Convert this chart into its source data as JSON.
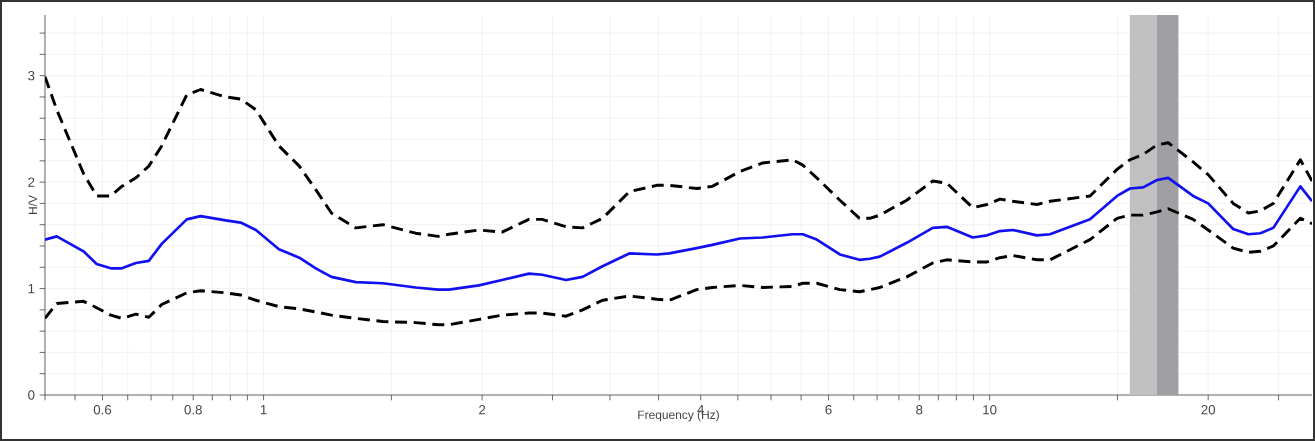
{
  "chart_data": {
    "type": "line",
    "xlabel": "Frequency (Hz)",
    "ylabel": "H/V",
    "log": "x",
    "grid": true,
    "xlim": [
      0.5,
      27.8
    ],
    "ylim": [
      0,
      3.57
    ],
    "xticks": [
      {
        "value": 0.5,
        "label": null
      },
      {
        "value": 0.55,
        "label": null
      },
      0.6,
      {
        "value": 0.65,
        "label": null
      },
      {
        "value": 0.7,
        "label": null
      },
      {
        "value": 0.75,
        "label": null
      },
      0.8,
      {
        "value": 0.85,
        "label": null
      },
      {
        "value": 0.9,
        "label": null
      },
      {
        "value": 0.95,
        "label": null
      },
      1,
      {
        "value": 1.5,
        "label": null
      },
      2,
      {
        "value": 2.5,
        "label": null
      },
      {
        "value": 3,
        "label": null
      },
      {
        "value": 3.5,
        "label": null
      },
      4,
      {
        "value": 4.5,
        "label": null
      },
      {
        "value": 5,
        "label": null
      },
      {
        "value": 5.5,
        "label": null
      },
      6,
      {
        "value": 6.5,
        "label": null
      },
      {
        "value": 7,
        "label": null
      },
      {
        "value": 7.5,
        "label": null
      },
      8,
      {
        "value": 8.5,
        "label": null
      },
      {
        "value": 9,
        "label": null
      },
      {
        "value": 9.5,
        "label": null
      },
      10,
      {
        "value": 15,
        "label": null
      },
      20,
      {
        "value": 25,
        "label": null
      }
    ],
    "yticks": [
      0,
      {
        "value": 0.2,
        "label": null
      },
      {
        "value": 0.4,
        "label": null
      },
      {
        "value": 0.6,
        "label": null
      },
      {
        "value": 0.8,
        "label": null
      },
      1,
      {
        "value": 1.2,
        "label": null
      },
      {
        "value": 1.4,
        "label": null
      },
      {
        "value": 1.6,
        "label": null
      },
      {
        "value": 1.8,
        "label": null
      },
      2,
      {
        "value": 2.2,
        "label": null
      },
      {
        "value": 2.4,
        "label": null
      },
      {
        "value": 2.6,
        "label": null
      },
      {
        "value": 2.8,
        "label": null
      },
      3,
      {
        "value": 3.2,
        "label": null
      },
      {
        "value": 3.4,
        "label": null
      }
    ],
    "bands": [
      {
        "axis": "x",
        "from": 15.6,
        "to": 17.0,
        "color": "#c0c0c0"
      },
      {
        "axis": "x",
        "from": 17.0,
        "to": 18.2,
        "color": "#a0a0a4"
      }
    ],
    "x": [
      0.5,
      0.519,
      0.565,
      0.589,
      0.616,
      0.638,
      0.667,
      0.695,
      0.724,
      0.784,
      0.819,
      0.887,
      0.93,
      0.976,
      1.05,
      1.12,
      1.18,
      1.24,
      1.34,
      1.46,
      1.62,
      1.74,
      1.8,
      1.98,
      2.13,
      2.32,
      2.42,
      2.61,
      2.75,
      2.93,
      3.19,
      3.48,
      3.62,
      3.95,
      4.15,
      4.53,
      4.87,
      5.35,
      5.53,
      5.78,
      6.22,
      6.62,
      6.84,
      7.06,
      7.69,
      8.35,
      8.73,
      9.48,
      9.92,
      10.33,
      10.77,
      11.62,
      12.11,
      13.75,
      14.98,
      15.61,
      16.27,
      17.01,
      17.62,
      19.07,
      20.0,
      21.65,
      22.72,
      23.6,
      24.59,
      26.79,
      27.8
    ],
    "series": [
      {
        "color": "#000000",
        "line_style": "dashed",
        "values": [
          2.99,
          2.68,
          2.08,
          1.87,
          1.87,
          1.96,
          2.04,
          2.15,
          2.34,
          2.82,
          2.87,
          2.8,
          2.78,
          2.68,
          2.34,
          2.15,
          1.93,
          1.71,
          1.57,
          1.6,
          1.52,
          1.49,
          1.51,
          1.55,
          1.53,
          1.65,
          1.65,
          1.58,
          1.57,
          1.66,
          1.91,
          1.97,
          1.97,
          1.94,
          1.96,
          2.1,
          2.18,
          2.21,
          2.16,
          2.04,
          1.83,
          1.66,
          1.66,
          1.69,
          1.83,
          2.01,
          1.99,
          1.76,
          1.79,
          1.84,
          1.82,
          1.79,
          1.82,
          1.87,
          2.12,
          2.21,
          2.26,
          2.35,
          2.37,
          2.19,
          2.07,
          1.8,
          1.71,
          1.73,
          1.8,
          2.21,
          2.01
        ]
      },
      {
        "color": "#000000",
        "line_style": "dashed",
        "values": [
          0.72,
          0.86,
          0.88,
          0.82,
          0.75,
          0.72,
          0.76,
          0.73,
          0.85,
          0.96,
          0.98,
          0.96,
          0.94,
          0.89,
          0.83,
          0.81,
          0.78,
          0.75,
          0.72,
          0.69,
          0.68,
          0.66,
          0.66,
          0.71,
          0.75,
          0.77,
          0.77,
          0.74,
          0.8,
          0.89,
          0.93,
          0.9,
          0.89,
          0.99,
          1.01,
          1.03,
          1.01,
          1.02,
          1.05,
          1.05,
          0.99,
          0.97,
          0.99,
          1.01,
          1.11,
          1.24,
          1.27,
          1.25,
          1.25,
          1.29,
          1.31,
          1.27,
          1.27,
          1.46,
          1.66,
          1.69,
          1.69,
          1.72,
          1.75,
          1.65,
          1.55,
          1.38,
          1.34,
          1.35,
          1.4,
          1.66,
          1.61
        ]
      },
      {
        "color": "#1010f0",
        "line_style": "solid",
        "values": [
          1.46,
          1.49,
          1.35,
          1.23,
          1.19,
          1.19,
          1.24,
          1.26,
          1.42,
          1.65,
          1.68,
          1.64,
          1.62,
          1.55,
          1.37,
          1.29,
          1.19,
          1.11,
          1.06,
          1.05,
          1.01,
          0.99,
          0.99,
          1.03,
          1.08,
          1.14,
          1.13,
          1.08,
          1.11,
          1.21,
          1.33,
          1.32,
          1.33,
          1.38,
          1.41,
          1.47,
          1.48,
          1.51,
          1.51,
          1.46,
          1.32,
          1.27,
          1.28,
          1.3,
          1.43,
          1.57,
          1.58,
          1.48,
          1.5,
          1.54,
          1.55,
          1.5,
          1.51,
          1.65,
          1.87,
          1.94,
          1.95,
          2.02,
          2.04,
          1.87,
          1.8,
          1.56,
          1.51,
          1.52,
          1.57,
          1.96,
          1.82
        ]
      }
    ]
  }
}
